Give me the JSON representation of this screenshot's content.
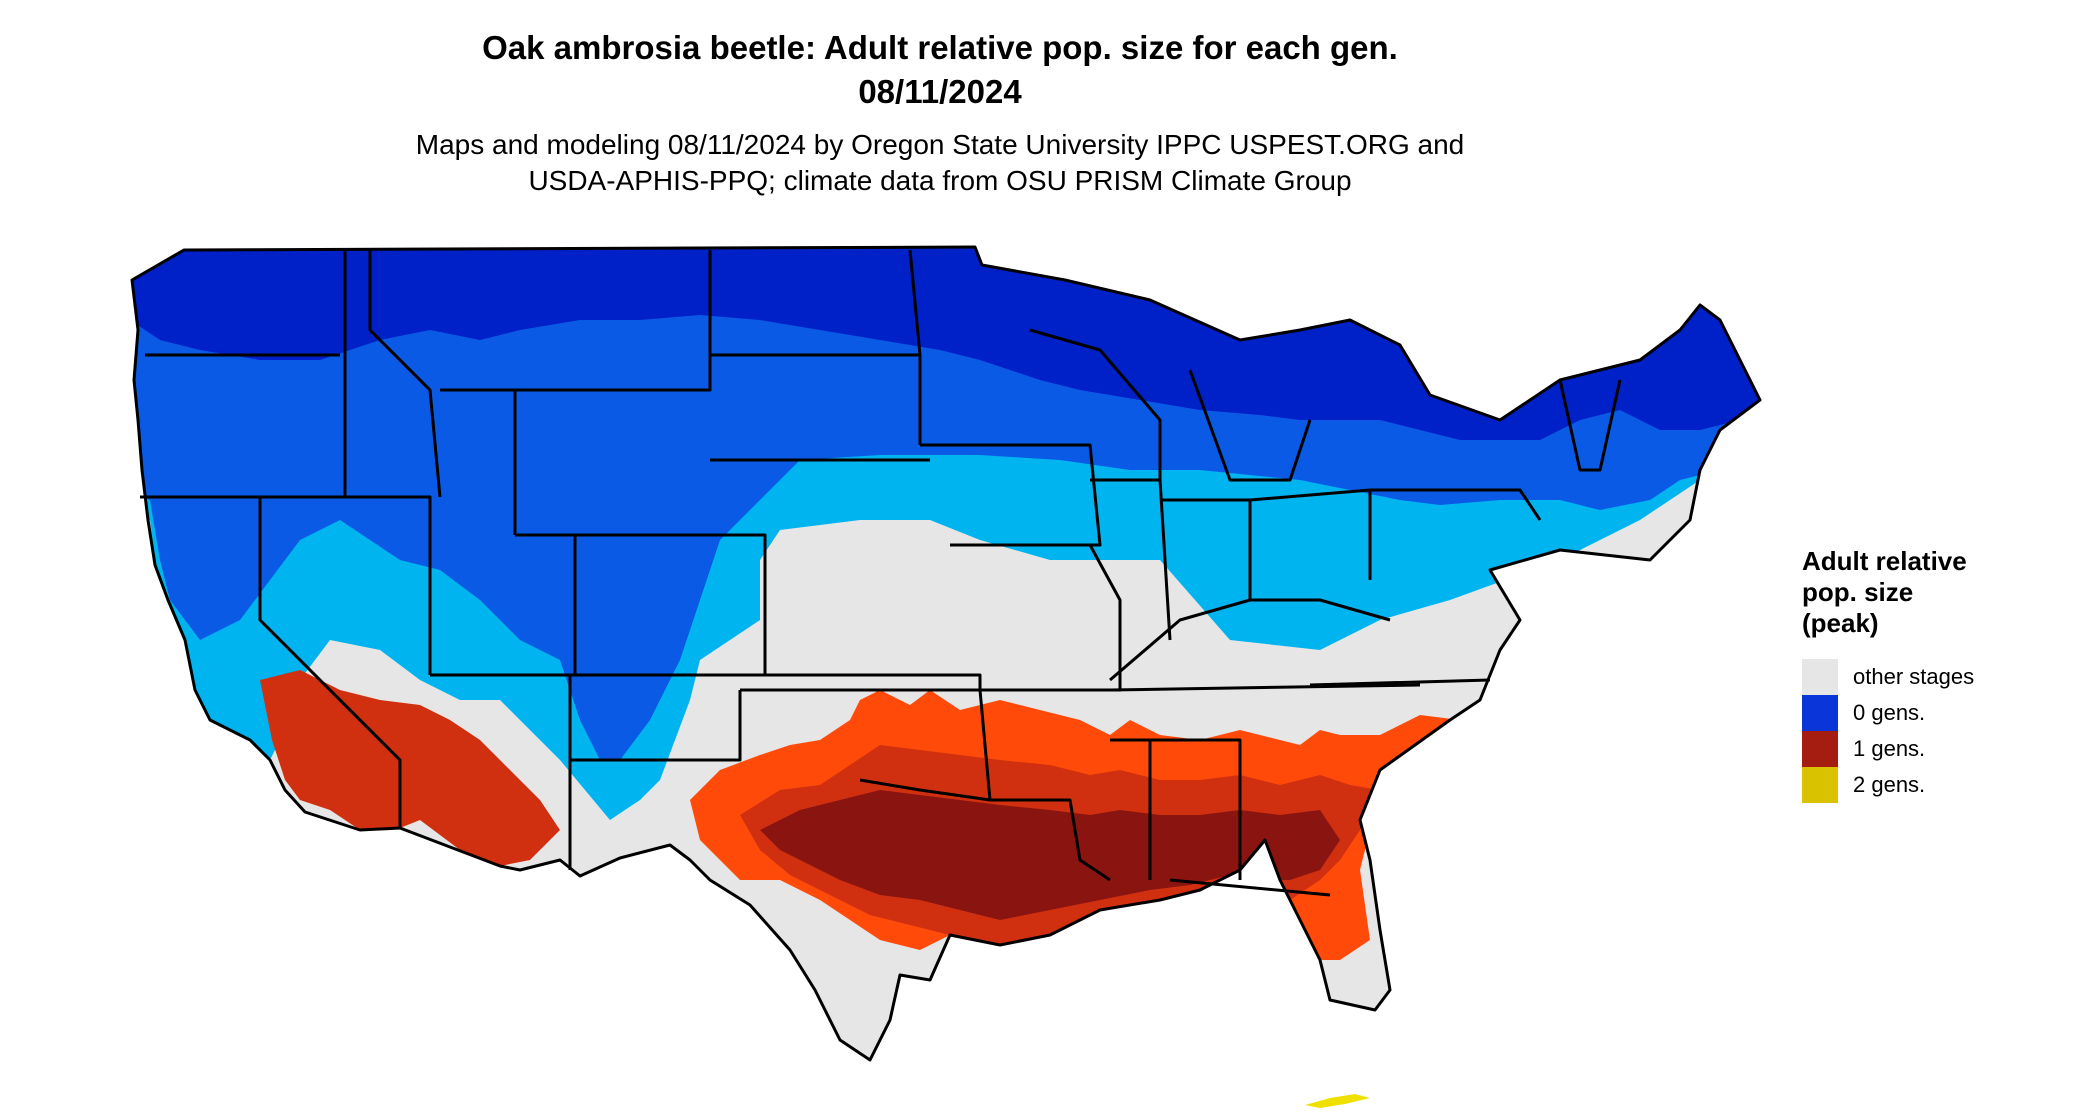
{
  "title": {
    "line1": "Oak ambrosia beetle: Adult relative pop. size for each gen.",
    "line2": "08/11/2024"
  },
  "subtitle": {
    "line1": "Maps and modeling 08/11/2024 by Oregon State University IPPC USPEST.ORG and",
    "line2": "USDA-APHIS-PPQ; climate data from OSU PRISM Climate Group"
  },
  "legend": {
    "title_lines": [
      "Adult relative",
      "pop. size",
      "(peak)"
    ],
    "items": [
      {
        "label": "other stages",
        "color": "#e6e6e6"
      },
      {
        "label": "0 gens.",
        "color": "#0a35d9"
      },
      {
        "label": "1 gens.",
        "color": "#a51c10"
      },
      {
        "label": "2 gens.",
        "color": "#d9c200"
      }
    ]
  },
  "map_colors": {
    "other_stages": "#e6e6e6",
    "gen0_low": "#00b4f0",
    "gen0_mid": "#0a5ae6",
    "gen0_high": "#0020c8",
    "gen1_low": "#ff4a0a",
    "gen1_mid": "#d03010",
    "gen1_high": "#8a1410",
    "gen2": "#f0e000",
    "state_border": "#000000"
  }
}
